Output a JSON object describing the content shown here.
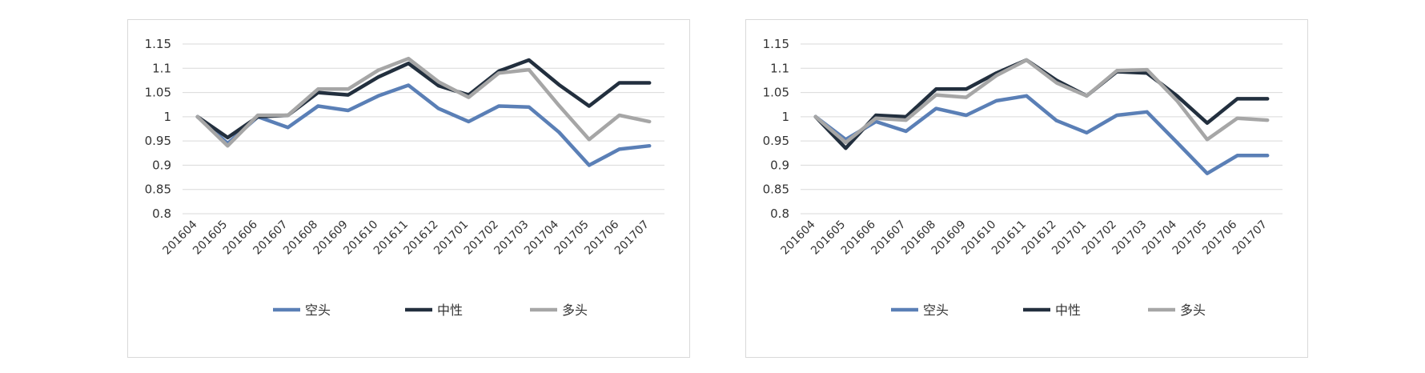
{
  "chart_data": [
    {
      "type": "line",
      "categories": [
        "201604",
        "201605",
        "201606",
        "201607",
        "201608",
        "201609",
        "201610",
        "201611",
        "201612",
        "201701",
        "201702",
        "201703",
        "201704",
        "201705",
        "201706",
        "201707"
      ],
      "series": [
        {
          "name": "空头",
          "color": "#5a7fb6",
          "values": [
            1.0,
            0.945,
            1.0,
            0.978,
            1.022,
            1.013,
            1.043,
            1.065,
            1.017,
            0.99,
            1.022,
            1.02,
            0.968,
            0.9,
            0.933,
            0.94
          ]
        },
        {
          "name": "中性",
          "color": "#222f3e",
          "values": [
            1.0,
            0.957,
            1.0,
            1.003,
            1.05,
            1.045,
            1.082,
            1.11,
            1.064,
            1.045,
            1.094,
            1.117,
            1.066,
            1.022,
            1.07,
            1.07
          ]
        },
        {
          "name": "多头",
          "color": "#a6a6a6",
          "values": [
            1.0,
            0.94,
            1.003,
            1.003,
            1.057,
            1.057,
            1.096,
            1.12,
            1.072,
            1.04,
            1.09,
            1.097,
            1.023,
            0.953,
            1.003,
            0.99
          ]
        }
      ],
      "yticks": [
        "1.15",
        "1.1",
        "1.05",
        "1",
        "0.95",
        "0.9",
        "0.85",
        "0.8"
      ],
      "ylim": [
        0.8,
        1.15
      ],
      "grid": true,
      "legend": "bottom"
    },
    {
      "type": "line",
      "categories": [
        "201604",
        "201605",
        "201606",
        "201607",
        "201608",
        "201609",
        "201610",
        "201611",
        "201612",
        "201701",
        "201702",
        "201703",
        "201704",
        "201705",
        "201706",
        "201707"
      ],
      "series": [
        {
          "name": "空头",
          "color": "#5a7fb6",
          "values": [
            1.0,
            0.953,
            0.99,
            0.97,
            1.017,
            1.003,
            1.033,
            1.043,
            0.992,
            0.967,
            1.003,
            1.01,
            0.947,
            0.883,
            0.92,
            0.92
          ]
        },
        {
          "name": "中性",
          "color": "#222f3e",
          "values": [
            1.0,
            0.935,
            1.003,
            1.0,
            1.057,
            1.057,
            1.09,
            1.117,
            1.075,
            1.043,
            1.093,
            1.09,
            1.043,
            0.987,
            1.037,
            1.037
          ]
        },
        {
          "name": "多头",
          "color": "#a6a6a6",
          "values": [
            1.0,
            0.947,
            0.997,
            0.993,
            1.045,
            1.04,
            1.085,
            1.117,
            1.07,
            1.043,
            1.095,
            1.097,
            1.033,
            0.953,
            0.997,
            0.993
          ]
        }
      ],
      "yticks": [
        "1.15",
        "1.1",
        "1.05",
        "1",
        "0.95",
        "0.9",
        "0.85",
        "0.8"
      ],
      "ylim": [
        0.8,
        1.15
      ],
      "grid": true,
      "legend": "bottom"
    }
  ]
}
